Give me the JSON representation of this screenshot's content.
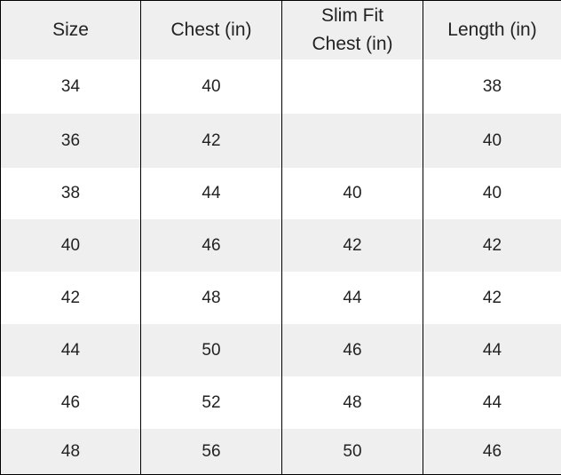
{
  "table": {
    "header": [
      "Size",
      "Chest (in)",
      "Slim Fit\nChest (in)",
      "Length (in)"
    ],
    "rows": [
      [
        34,
        40,
        null,
        38
      ],
      [
        36,
        42,
        null,
        40
      ],
      [
        38,
        44,
        40,
        40
      ],
      [
        40,
        46,
        42,
        42
      ],
      [
        42,
        48,
        44,
        42
      ],
      [
        44,
        50,
        46,
        44
      ],
      [
        46,
        52,
        48,
        44
      ],
      [
        48,
        56,
        50,
        46
      ]
    ]
  }
}
